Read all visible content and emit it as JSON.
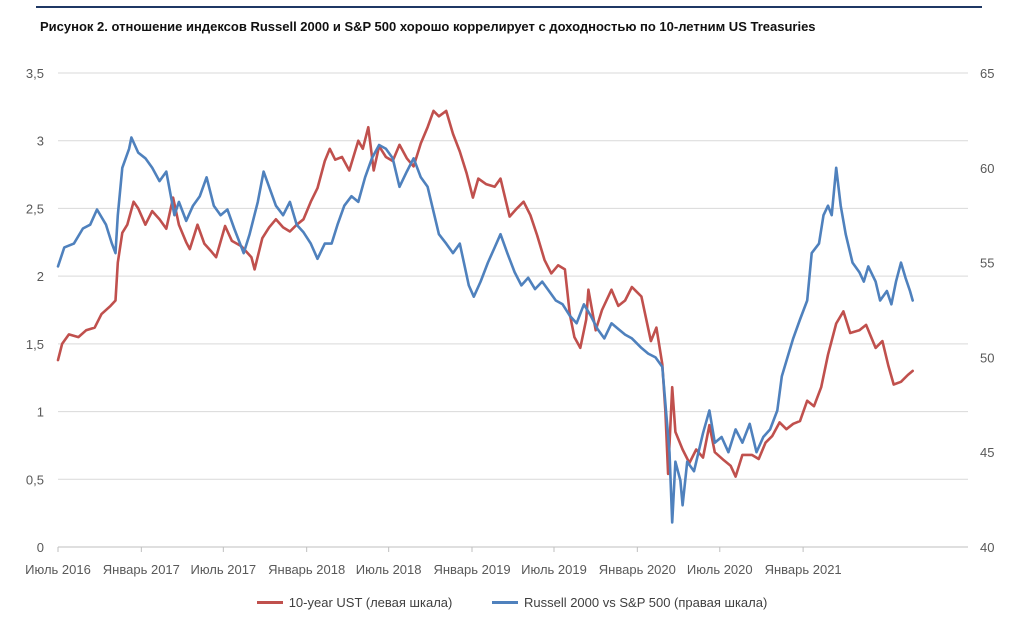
{
  "title": "Рисунок 2. отношение индексов Russell 2000 и S&P 500 хорошо коррелирует с доходностью по 10-летним US Treasuries",
  "chart_data": {
    "type": "line",
    "title": "Рисунок 2. отношение индексов Russell 2000 и S&P 500 хорошо коррелирует с доходностью по 10-летним US Treasuries",
    "x_range": [
      "2016-07-01",
      "2021-12-31"
    ],
    "x_tick_labels": [
      "Июль 2016",
      "Январь 2017",
      "Июль 2017",
      "Январь 2018",
      "Июль 2018",
      "Январь 2019",
      "Июль 2019",
      "Январь 2020",
      "Июль 2020",
      "Январь 2021"
    ],
    "x_tick_dates": [
      "2016-07-01",
      "2017-01-01",
      "2017-07-01",
      "2018-01-01",
      "2018-07-01",
      "2019-01-01",
      "2019-07-01",
      "2020-01-01",
      "2020-07-01",
      "2021-01-01"
    ],
    "y_left": {
      "range": [
        0,
        3.5
      ],
      "tick_labels": [
        "0",
        "0,5",
        "1",
        "1,5",
        "2",
        "2,5",
        "3",
        "3,5"
      ]
    },
    "y_right": {
      "range": [
        40,
        65
      ],
      "tick_labels": [
        "40",
        "45",
        "50",
        "55",
        "60",
        "65"
      ]
    },
    "grid": "horizontal",
    "legend_position": "bottom",
    "series": [
      {
        "name": "10-year UST (левая шкала)",
        "axis": "left",
        "color": "#c0504d",
        "points": [
          [
            "2016-07-01",
            1.38
          ],
          [
            "2016-07-10",
            1.5
          ],
          [
            "2016-07-25",
            1.57
          ],
          [
            "2016-08-15",
            1.55
          ],
          [
            "2016-09-01",
            1.6
          ],
          [
            "2016-09-20",
            1.62
          ],
          [
            "2016-10-05",
            1.72
          ],
          [
            "2016-10-25",
            1.78
          ],
          [
            "2016-11-05",
            1.82
          ],
          [
            "2016-11-10",
            2.1
          ],
          [
            "2016-11-20",
            2.32
          ],
          [
            "2016-12-01",
            2.38
          ],
          [
            "2016-12-15",
            2.55
          ],
          [
            "2016-12-25",
            2.5
          ],
          [
            "2017-01-10",
            2.38
          ],
          [
            "2017-01-25",
            2.48
          ],
          [
            "2017-02-10",
            2.42
          ],
          [
            "2017-02-25",
            2.35
          ],
          [
            "2017-03-12",
            2.58
          ],
          [
            "2017-03-25",
            2.38
          ],
          [
            "2017-04-10",
            2.25
          ],
          [
            "2017-04-18",
            2.2
          ],
          [
            "2017-05-05",
            2.38
          ],
          [
            "2017-05-20",
            2.24
          ],
          [
            "2017-06-05",
            2.18
          ],
          [
            "2017-06-15",
            2.14
          ],
          [
            "2017-07-05",
            2.37
          ],
          [
            "2017-07-20",
            2.26
          ],
          [
            "2017-08-10",
            2.22
          ],
          [
            "2017-09-01",
            2.14
          ],
          [
            "2017-09-08",
            2.05
          ],
          [
            "2017-09-25",
            2.28
          ],
          [
            "2017-10-10",
            2.36
          ],
          [
            "2017-10-25",
            2.42
          ],
          [
            "2017-11-10",
            2.36
          ],
          [
            "2017-11-25",
            2.33
          ],
          [
            "2017-12-10",
            2.38
          ],
          [
            "2017-12-25",
            2.42
          ],
          [
            "2018-01-10",
            2.55
          ],
          [
            "2018-01-25",
            2.65
          ],
          [
            "2018-02-10",
            2.85
          ],
          [
            "2018-02-21",
            2.94
          ],
          [
            "2018-03-05",
            2.86
          ],
          [
            "2018-03-20",
            2.88
          ],
          [
            "2018-04-05",
            2.78
          ],
          [
            "2018-04-25",
            3.0
          ],
          [
            "2018-05-05",
            2.94
          ],
          [
            "2018-05-17",
            3.1
          ],
          [
            "2018-05-29",
            2.78
          ],
          [
            "2018-06-10",
            2.96
          ],
          [
            "2018-06-25",
            2.88
          ],
          [
            "2018-07-10",
            2.85
          ],
          [
            "2018-07-25",
            2.97
          ],
          [
            "2018-08-10",
            2.87
          ],
          [
            "2018-08-25",
            2.81
          ],
          [
            "2018-09-10",
            2.98
          ],
          [
            "2018-09-25",
            3.1
          ],
          [
            "2018-10-08",
            3.22
          ],
          [
            "2018-10-20",
            3.18
          ],
          [
            "2018-11-05",
            3.22
          ],
          [
            "2018-11-20",
            3.05
          ],
          [
            "2018-12-05",
            2.92
          ],
          [
            "2018-12-20",
            2.76
          ],
          [
            "2019-01-03",
            2.58
          ],
          [
            "2019-01-15",
            2.72
          ],
          [
            "2019-02-01",
            2.68
          ],
          [
            "2019-02-20",
            2.66
          ],
          [
            "2019-03-05",
            2.72
          ],
          [
            "2019-03-25",
            2.44
          ],
          [
            "2019-04-10",
            2.5
          ],
          [
            "2019-04-25",
            2.55
          ],
          [
            "2019-05-10",
            2.45
          ],
          [
            "2019-05-25",
            2.3
          ],
          [
            "2019-06-10",
            2.12
          ],
          [
            "2019-06-25",
            2.02
          ],
          [
            "2019-07-10",
            2.08
          ],
          [
            "2019-07-25",
            2.05
          ],
          [
            "2019-08-05",
            1.72
          ],
          [
            "2019-08-15",
            1.55
          ],
          [
            "2019-08-28",
            1.47
          ],
          [
            "2019-09-10",
            1.68
          ],
          [
            "2019-09-15",
            1.9
          ],
          [
            "2019-10-01",
            1.6
          ],
          [
            "2019-10-15",
            1.75
          ],
          [
            "2019-11-05",
            1.9
          ],
          [
            "2019-11-20",
            1.78
          ],
          [
            "2019-12-05",
            1.82
          ],
          [
            "2019-12-20",
            1.92
          ],
          [
            "2020-01-10",
            1.85
          ],
          [
            "2020-01-31",
            1.52
          ],
          [
            "2020-02-12",
            1.62
          ],
          [
            "2020-02-25",
            1.35
          ],
          [
            "2020-03-03",
            1.0
          ],
          [
            "2020-03-09",
            0.54
          ],
          [
            "2020-03-18",
            1.18
          ],
          [
            "2020-03-25",
            0.85
          ],
          [
            "2020-04-10",
            0.72
          ],
          [
            "2020-04-25",
            0.62
          ],
          [
            "2020-05-10",
            0.72
          ],
          [
            "2020-05-25",
            0.66
          ],
          [
            "2020-06-08",
            0.9
          ],
          [
            "2020-06-20",
            0.7
          ],
          [
            "2020-07-10",
            0.64
          ],
          [
            "2020-07-25",
            0.6
          ],
          [
            "2020-08-05",
            0.52
          ],
          [
            "2020-08-20",
            0.68
          ],
          [
            "2020-09-10",
            0.68
          ],
          [
            "2020-09-25",
            0.65
          ],
          [
            "2020-10-10",
            0.77
          ],
          [
            "2020-10-25",
            0.82
          ],
          [
            "2020-11-10",
            0.92
          ],
          [
            "2020-11-25",
            0.87
          ],
          [
            "2020-12-10",
            0.91
          ],
          [
            "2020-12-25",
            0.93
          ],
          [
            "2021-01-10",
            1.08
          ],
          [
            "2021-01-25",
            1.04
          ],
          [
            "2021-02-10",
            1.18
          ],
          [
            "2021-02-25",
            1.42
          ],
          [
            "2021-03-15",
            1.65
          ],
          [
            "2021-03-31",
            1.74
          ],
          [
            "2021-04-15",
            1.58
          ],
          [
            "2021-05-05",
            1.6
          ],
          [
            "2021-05-20",
            1.64
          ],
          [
            "2021-06-10",
            1.47
          ],
          [
            "2021-06-25",
            1.52
          ],
          [
            "2021-07-08",
            1.34
          ],
          [
            "2021-07-20",
            1.2
          ],
          [
            "2021-08-05",
            1.22
          ],
          [
            "2021-08-20",
            1.27
          ],
          [
            "2021-08-31",
            1.3
          ]
        ]
      },
      {
        "name": "Russell 2000 vs S&P 500 (правая шкала)",
        "axis": "right",
        "color": "#4f81bd",
        "points": [
          [
            "2016-07-01",
            54.8
          ],
          [
            "2016-07-15",
            55.8
          ],
          [
            "2016-08-05",
            56.0
          ],
          [
            "2016-08-25",
            56.8
          ],
          [
            "2016-09-10",
            57.0
          ],
          [
            "2016-09-25",
            57.8
          ],
          [
            "2016-10-15",
            57.0
          ],
          [
            "2016-10-28",
            56.0
          ],
          [
            "2016-11-05",
            55.5
          ],
          [
            "2016-11-10",
            57.5
          ],
          [
            "2016-11-20",
            60.0
          ],
          [
            "2016-12-05",
            61.0
          ],
          [
            "2016-12-10",
            61.6
          ],
          [
            "2016-12-25",
            60.8
          ],
          [
            "2017-01-10",
            60.5
          ],
          [
            "2017-01-25",
            60.0
          ],
          [
            "2017-02-10",
            59.3
          ],
          [
            "2017-02-25",
            59.8
          ],
          [
            "2017-03-15",
            57.5
          ],
          [
            "2017-03-25",
            58.2
          ],
          [
            "2017-04-10",
            57.2
          ],
          [
            "2017-04-25",
            58.0
          ],
          [
            "2017-05-10",
            58.5
          ],
          [
            "2017-05-25",
            59.5
          ],
          [
            "2017-06-10",
            58.0
          ],
          [
            "2017-06-25",
            57.5
          ],
          [
            "2017-07-10",
            57.8
          ],
          [
            "2017-07-25",
            56.8
          ],
          [
            "2017-08-15",
            55.5
          ],
          [
            "2017-08-28",
            56.5
          ],
          [
            "2017-09-15",
            58.2
          ],
          [
            "2017-09-28",
            59.8
          ],
          [
            "2017-10-10",
            59.0
          ],
          [
            "2017-10-25",
            58.0
          ],
          [
            "2017-11-10",
            57.5
          ],
          [
            "2017-11-25",
            58.2
          ],
          [
            "2017-12-10",
            57.0
          ],
          [
            "2017-12-25",
            56.6
          ],
          [
            "2018-01-10",
            56.0
          ],
          [
            "2018-01-25",
            55.2
          ],
          [
            "2018-02-10",
            56.0
          ],
          [
            "2018-02-25",
            56.0
          ],
          [
            "2018-03-10",
            57.0
          ],
          [
            "2018-03-25",
            58.0
          ],
          [
            "2018-04-10",
            58.5
          ],
          [
            "2018-04-25",
            58.2
          ],
          [
            "2018-05-10",
            59.5
          ],
          [
            "2018-05-25",
            60.5
          ],
          [
            "2018-06-10",
            61.2
          ],
          [
            "2018-06-25",
            61.0
          ],
          [
            "2018-07-10",
            60.5
          ],
          [
            "2018-07-25",
            59.0
          ],
          [
            "2018-08-10",
            59.8
          ],
          [
            "2018-08-25",
            60.5
          ],
          [
            "2018-09-10",
            59.5
          ],
          [
            "2018-09-25",
            59.0
          ],
          [
            "2018-10-05",
            58.0
          ],
          [
            "2018-10-20",
            56.5
          ],
          [
            "2018-11-05",
            56.0
          ],
          [
            "2018-11-20",
            55.5
          ],
          [
            "2018-12-05",
            56.0
          ],
          [
            "2018-12-25",
            53.8
          ],
          [
            "2019-01-05",
            53.2
          ],
          [
            "2019-01-20",
            54.0
          ],
          [
            "2019-02-05",
            55.0
          ],
          [
            "2019-02-20",
            55.8
          ],
          [
            "2019-03-05",
            56.5
          ],
          [
            "2019-03-20",
            55.5
          ],
          [
            "2019-04-05",
            54.5
          ],
          [
            "2019-04-20",
            53.8
          ],
          [
            "2019-05-05",
            54.2
          ],
          [
            "2019-05-20",
            53.6
          ],
          [
            "2019-06-05",
            54.0
          ],
          [
            "2019-06-20",
            53.5
          ],
          [
            "2019-07-05",
            53.0
          ],
          [
            "2019-07-20",
            52.8
          ],
          [
            "2019-08-05",
            52.2
          ],
          [
            "2019-08-20",
            51.8
          ],
          [
            "2019-09-05",
            52.8
          ],
          [
            "2019-09-20",
            52.2
          ],
          [
            "2019-10-05",
            51.5
          ],
          [
            "2019-10-20",
            51.0
          ],
          [
            "2019-11-05",
            51.8
          ],
          [
            "2019-11-20",
            51.5
          ],
          [
            "2019-12-05",
            51.2
          ],
          [
            "2019-12-20",
            51.0
          ],
          [
            "2020-01-10",
            50.5
          ],
          [
            "2020-01-25",
            50.2
          ],
          [
            "2020-02-10",
            50.0
          ],
          [
            "2020-02-25",
            49.5
          ],
          [
            "2020-03-05",
            47.0
          ],
          [
            "2020-03-12",
            45.0
          ],
          [
            "2020-03-18",
            41.3
          ],
          [
            "2020-03-25",
            44.5
          ],
          [
            "2020-04-05",
            43.5
          ],
          [
            "2020-04-10",
            42.2
          ],
          [
            "2020-04-20",
            44.5
          ],
          [
            "2020-05-05",
            44.0
          ],
          [
            "2020-05-15",
            45.0
          ],
          [
            "2020-05-25",
            46.0
          ],
          [
            "2020-06-08",
            47.2
          ],
          [
            "2020-06-20",
            45.5
          ],
          [
            "2020-07-05",
            45.8
          ],
          [
            "2020-07-20",
            45.0
          ],
          [
            "2020-08-05",
            46.2
          ],
          [
            "2020-08-20",
            45.5
          ],
          [
            "2020-09-05",
            46.5
          ],
          [
            "2020-09-20",
            45.0
          ],
          [
            "2020-10-05",
            45.8
          ],
          [
            "2020-10-20",
            46.2
          ],
          [
            "2020-11-05",
            47.2
          ],
          [
            "2020-11-15",
            49.0
          ],
          [
            "2020-11-30",
            50.2
          ],
          [
            "2020-12-10",
            51.0
          ],
          [
            "2020-12-25",
            52.0
          ],
          [
            "2021-01-10",
            53.0
          ],
          [
            "2021-01-20",
            55.5
          ],
          [
            "2021-02-05",
            56.0
          ],
          [
            "2021-02-15",
            57.5
          ],
          [
            "2021-02-25",
            58.0
          ],
          [
            "2021-03-05",
            57.5
          ],
          [
            "2021-03-15",
            60.0
          ],
          [
            "2021-03-25",
            58.0
          ],
          [
            "2021-04-05",
            56.5
          ],
          [
            "2021-04-20",
            55.0
          ],
          [
            "2021-05-05",
            54.5
          ],
          [
            "2021-05-15",
            54.0
          ],
          [
            "2021-05-25",
            54.8
          ],
          [
            "2021-06-10",
            54.0
          ],
          [
            "2021-06-20",
            53.0
          ],
          [
            "2021-07-05",
            53.5
          ],
          [
            "2021-07-15",
            52.8
          ],
          [
            "2021-07-25",
            54.0
          ],
          [
            "2021-08-05",
            55.0
          ],
          [
            "2021-08-15",
            54.2
          ],
          [
            "2021-08-25",
            53.5
          ],
          [
            "2021-08-31",
            53.0
          ]
        ]
      }
    ]
  }
}
